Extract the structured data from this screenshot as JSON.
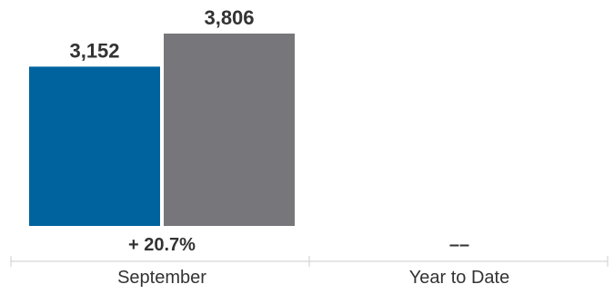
{
  "chart_data": {
    "type": "bar",
    "categories": [
      "September",
      "Year to Date"
    ],
    "series": [
      {
        "color": "#00639e",
        "values": [
          3152,
          null
        ]
      },
      {
        "color": "#77767b",
        "values": [
          3806,
          null
        ]
      }
    ],
    "value_labels": [
      [
        "3,152",
        "3,806"
      ],
      [
        "",
        ""
      ]
    ],
    "change_labels": [
      "+ 20.7%",
      "––"
    ],
    "ylim": [
      0,
      3806
    ],
    "grid": false,
    "legend": "none"
  }
}
